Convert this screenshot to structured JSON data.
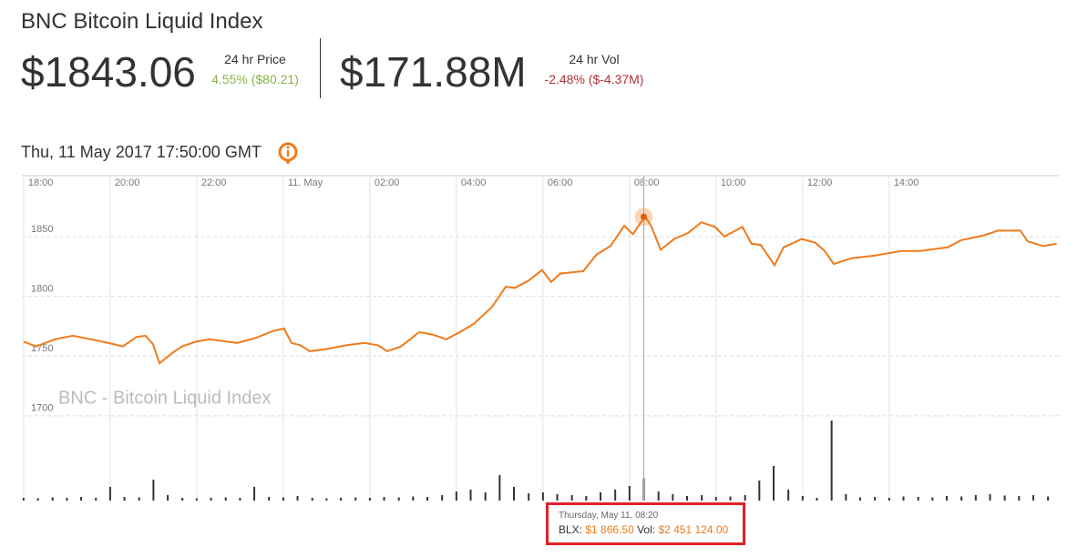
{
  "header": {
    "title": "BNC Bitcoin Liquid Index",
    "price": "$1843.06",
    "price_label": "24 hr Price",
    "price_change": "4.55% ($80.21)",
    "vol": "$171.88M",
    "vol_label": "24 hr Vol",
    "vol_change": "-2.48% ($-4.37M)",
    "timestamp": "Thu, 11 May 2017 17:50:00 GMT"
  },
  "chart_data": {
    "type": "line",
    "watermark": "BNC - Bitcoin Liquid Index",
    "xlim": [
      17.96,
      41.92
    ],
    "xticks": [
      {
        "value": 18,
        "label": "18:00"
      },
      {
        "value": 20,
        "label": "20:00"
      },
      {
        "value": 22,
        "label": "22:00"
      },
      {
        "value": 24,
        "label": "11. May"
      },
      {
        "value": 26,
        "label": "02:00"
      },
      {
        "value": 28,
        "label": "04:00"
      },
      {
        "value": 30,
        "label": "06:00"
      },
      {
        "value": 32,
        "label": "08:00"
      },
      {
        "value": 34,
        "label": "10:00"
      },
      {
        "value": 36,
        "label": "12:00"
      },
      {
        "value": 38,
        "label": "14:00"
      }
    ],
    "ylim": [
      1629,
      1901
    ],
    "yticks": [
      1700,
      1750,
      1800,
      1850
    ],
    "y2lim": [
      0,
      10000000
    ],
    "grid": true,
    "hover": {
      "x": 32.33,
      "y": 1866.5
    },
    "series": [
      {
        "type": "line",
        "color": "#f07a1a",
        "x": [
          18.0,
          18.29,
          18.72,
          19.14,
          19.56,
          20.08,
          20.29,
          20.61,
          20.82,
          20.99,
          21.14,
          21.45,
          21.66,
          21.98,
          22.29,
          22.93,
          23.35,
          23.77,
          24.02,
          24.19,
          24.4,
          24.61,
          25.03,
          25.45,
          25.87,
          26.19,
          26.4,
          26.72,
          27.14,
          27.45,
          27.77,
          28.08,
          28.4,
          28.82,
          29.14,
          29.35,
          29.66,
          29.98,
          30.19,
          30.4,
          30.93,
          31.24,
          31.56,
          31.88,
          32.08,
          32.36,
          32.51,
          32.72,
          33.03,
          33.35,
          33.66,
          33.98,
          34.19,
          34.61,
          34.82,
          35.03,
          35.35,
          35.56,
          35.98,
          36.29,
          36.51,
          36.72,
          37.14,
          37.66,
          38.29,
          38.72,
          39.35,
          39.66,
          40.19,
          40.51,
          41.03,
          41.2,
          41.56,
          41.87
        ],
        "values": [
          1762,
          1758,
          1764,
          1767,
          1764,
          1760,
          1758,
          1766,
          1767,
          1760,
          1744,
          1753,
          1758,
          1762,
          1764,
          1761,
          1765,
          1771,
          1773,
          1761,
          1759,
          1754,
          1756,
          1759,
          1761,
          1759,
          1754,
          1758,
          1770,
          1768,
          1764,
          1770,
          1777,
          1791,
          1808,
          1807,
          1813,
          1822,
          1812,
          1819,
          1821,
          1835,
          1842,
          1859,
          1852,
          1867,
          1858,
          1839,
          1848,
          1853,
          1862,
          1858,
          1850,
          1858,
          1844,
          1843,
          1826,
          1841,
          1848,
          1845,
          1838,
          1827,
          1832,
          1834,
          1838,
          1838,
          1841,
          1847,
          1851,
          1855,
          1855,
          1846,
          1842,
          1844
        ]
      },
      {
        "type": "bar",
        "axis": "y2",
        "color": "#333333",
        "x": [
          18,
          18.33,
          18.67,
          19,
          19.33,
          19.67,
          20,
          20.33,
          20.67,
          21,
          21.33,
          21.67,
          22,
          22.33,
          22.67,
          23,
          23.33,
          23.67,
          24,
          24.33,
          24.67,
          25,
          25.33,
          25.67,
          26,
          26.33,
          26.67,
          27,
          27.33,
          27.67,
          28,
          28.33,
          28.67,
          29,
          29.33,
          29.67,
          30,
          30.33,
          30.67,
          31,
          31.33,
          31.67,
          32,
          32.33,
          32.67,
          33,
          33.33,
          33.67,
          34,
          34.33,
          34.67,
          35,
          35.33,
          35.67,
          36,
          36.33,
          36.67,
          37,
          37.33,
          37.67,
          38,
          38.33,
          38.67,
          39,
          39.33,
          39.67,
          40,
          40.33,
          40.67,
          41,
          41.33,
          41.67
        ],
        "values": [
          300000,
          250000,
          350000,
          300000,
          400000,
          300000,
          1500000,
          400000,
          350000,
          2300000,
          600000,
          300000,
          250000,
          300000,
          350000,
          300000,
          1500000,
          400000,
          350000,
          500000,
          300000,
          250000,
          300000,
          350000,
          300000,
          400000,
          350000,
          450000,
          400000,
          600000,
          1000000,
          1200000,
          900000,
          2800000,
          1500000,
          800000,
          900000,
          700000,
          600000,
          500000,
          900000,
          1200000,
          1600000,
          2451124,
          1000000,
          700000,
          500000,
          600000,
          400000,
          450000,
          600000,
          2200000,
          3800000,
          1200000,
          500000,
          300000,
          8800000,
          700000,
          350000,
          400000,
          300000,
          450000,
          400000,
          350000,
          500000,
          450000,
          600000,
          700000,
          550000,
          500000,
          600000,
          450000
        ]
      }
    ]
  },
  "tooltip": {
    "date": "Thursday, May 11, 08:20",
    "price_label": "BLX:",
    "price": "$1 866.50",
    "vol_label": "Vol:",
    "vol": "$2 451 124.00"
  }
}
